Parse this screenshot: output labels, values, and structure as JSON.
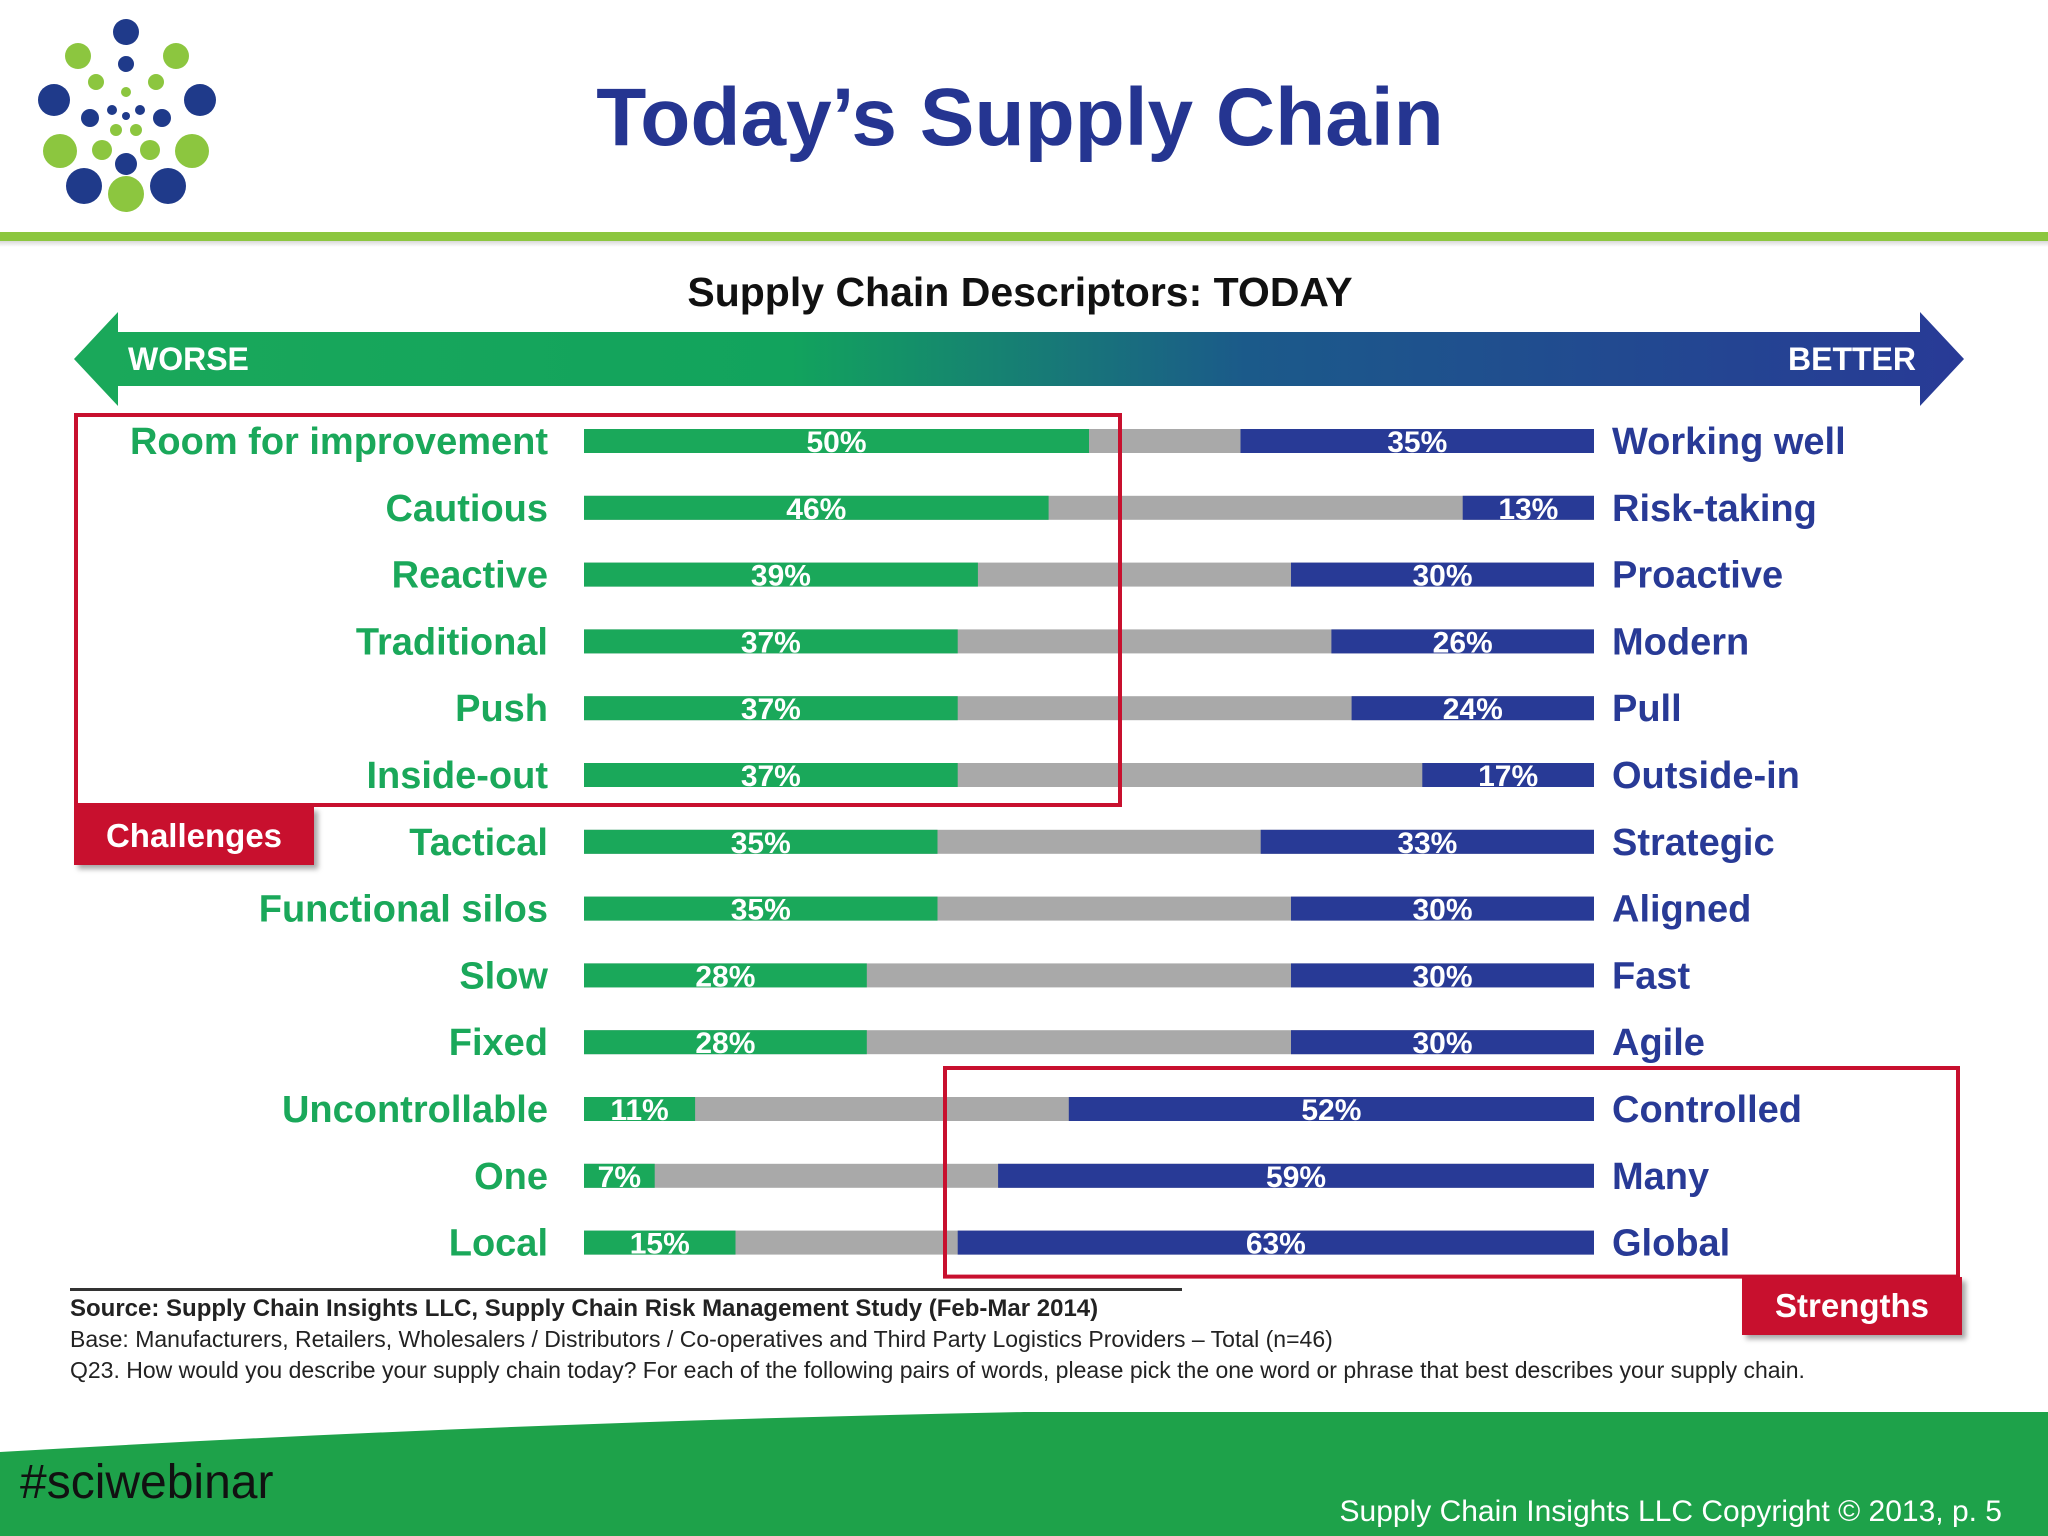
{
  "slide": {
    "title": "Today’s Supply Chain",
    "hashtag": "#sciwebinar",
    "copyright": "Supply Chain Insights LLC Copyright © 2013, p. 5"
  },
  "colors": {
    "title": "#253591",
    "worse": "#1aa85a",
    "better": "#283a96",
    "neutral": "#a9a9a9",
    "highlight": "#c8102e",
    "accent_rule": "#8cc63f"
  },
  "callouts": {
    "challenges": "Challenges",
    "strengths": "Strengths"
  },
  "notes": {
    "source": "Source:  Supply Chain Insights LLC, Supply Chain Risk Management Study (Feb-Mar 2014)",
    "base": "Base:  Manufacturers,  Retailers, Wholesalers / Distributors / Co-operatives and Third Party Logistics Providers – Total (n=46)",
    "question": "Q23. How would you describe your supply chain today?  For each of the following pairs of words, please pick the one word or phrase that best describes your supply chain."
  },
  "chart_data": {
    "type": "bar",
    "orientation": "horizontal diverging (100% stacked)",
    "title": "Supply Chain Descriptors:  TODAY",
    "scale_labels": {
      "left": "WORSE",
      "right": "BETTER"
    },
    "unit": "%",
    "xlim": [
      0,
      100
    ],
    "left_categories": [
      "Room for improvement",
      "Cautious",
      "Reactive",
      "Traditional",
      "Push",
      "Inside-out",
      "Tactical",
      "Functional silos",
      "Slow",
      "Fixed",
      "Uncontrollable",
      "One",
      "Local"
    ],
    "right_categories": [
      "Working well",
      "Risk-taking",
      "Proactive",
      "Modern",
      "Pull",
      "Outside-in",
      "Strategic",
      "Aligned",
      "Fast",
      "Agile",
      "Controlled",
      "Many",
      "Global"
    ],
    "series": [
      {
        "values": [
          50,
          46,
          39,
          37,
          37,
          37,
          35,
          35,
          28,
          28,
          11,
          7,
          15
        ]
      },
      {
        "values": [
          35,
          13,
          30,
          26,
          24,
          17,
          33,
          30,
          30,
          30,
          52,
          59,
          63
        ]
      }
    ],
    "highlight_groups": [
      {
        "label": "Challenges",
        "rows": [
          "Room for improvement",
          "Cautious",
          "Reactive",
          "Traditional",
          "Push",
          "Inside-out"
        ],
        "side": "left"
      },
      {
        "label": "Strengths",
        "rows": [
          "Controlled",
          "Many",
          "Global"
        ],
        "side": "right"
      }
    ]
  }
}
